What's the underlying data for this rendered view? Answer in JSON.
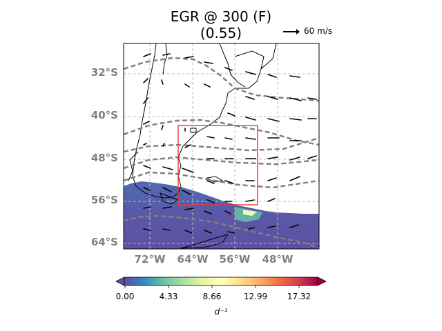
{
  "title_line1": "EGR @ 300 (F)",
  "title_line2": "(0.55)",
  "quiver_key": {
    "label": "60 m/s"
  },
  "map": {
    "lat_labels": [
      "32°S",
      "40°S",
      "48°S",
      "56°S",
      "64°S"
    ],
    "lon_labels": [
      "72°W",
      "64°W",
      "56°W",
      "48°W"
    ],
    "box_color": "#e8382f",
    "contour_color": "#808080",
    "gridline_color": "#bdbdbd"
  },
  "colorbar": {
    "cmap": "Spectral_r",
    "ticks": [
      "0.00",
      "4.33",
      "8.66",
      "12.99",
      "17.32"
    ],
    "unit": "d⁻¹",
    "colors": [
      "#5e4fa2",
      "#3288bd",
      "#66c2a5",
      "#abdda4",
      "#e6f598",
      "#ffffbf",
      "#fee08b",
      "#fdae61",
      "#f46d43",
      "#d53e4f",
      "#9e0142"
    ]
  }
}
